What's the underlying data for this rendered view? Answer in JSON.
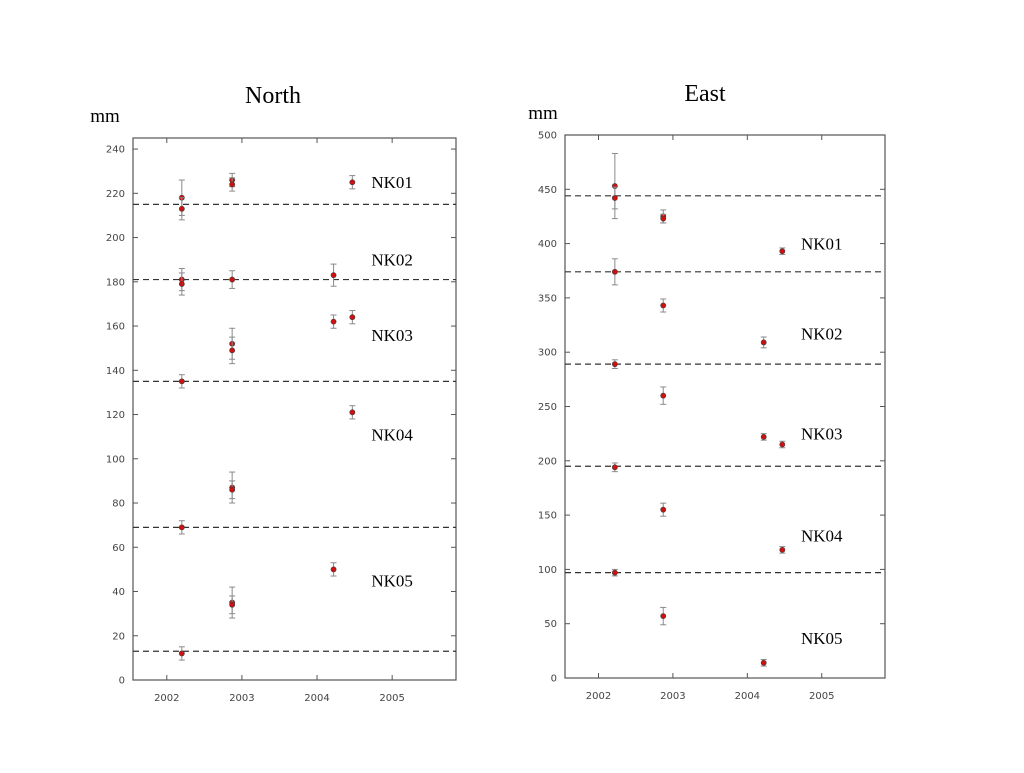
{
  "chart_data": [
    {
      "type": "scatter",
      "title": "North",
      "ylabel": "mm",
      "xlabel": "",
      "xlim": [
        2001.55,
        2005.85
      ],
      "ylim": [
        0,
        245
      ],
      "xticks": [
        2002,
        2003,
        2004,
        2005
      ],
      "yticks": [
        0,
        20,
        40,
        60,
        80,
        100,
        120,
        140,
        160,
        180,
        200,
        220,
        240
      ],
      "grid": false,
      "reference_lines": [
        215,
        181,
        135,
        69,
        13
      ],
      "station_labels": [
        {
          "text": "NK01",
          "x": 2005.0,
          "y": 225
        },
        {
          "text": "NK02",
          "x": 2005.0,
          "y": 190
        },
        {
          "text": "NK03",
          "x": 2005.0,
          "y": 156
        },
        {
          "text": "NK04",
          "x": 2005.0,
          "y": 111
        },
        {
          "text": "NK05",
          "x": 2005.0,
          "y": 45
        }
      ],
      "points": [
        {
          "x": 2002.2,
          "y": 218,
          "err": 8
        },
        {
          "x": 2002.2,
          "y": 213,
          "err": 5
        },
        {
          "x": 2002.87,
          "y": 226,
          "err": 3
        },
        {
          "x": 2002.87,
          "y": 224,
          "err": 3
        },
        {
          "x": 2004.47,
          "y": 225,
          "err": 3
        },
        {
          "x": 2002.2,
          "y": 181,
          "err": 5
        },
        {
          "x": 2002.2,
          "y": 179,
          "err": 5
        },
        {
          "x": 2002.87,
          "y": 181,
          "err": 4
        },
        {
          "x": 2004.22,
          "y": 183,
          "err": 5
        },
        {
          "x": 2002.87,
          "y": 152,
          "err": 7
        },
        {
          "x": 2002.87,
          "y": 149,
          "err": 6
        },
        {
          "x": 2004.22,
          "y": 162,
          "err": 3
        },
        {
          "x": 2004.47,
          "y": 164,
          "err": 3
        },
        {
          "x": 2002.2,
          "y": 135,
          "err": 3
        },
        {
          "x": 2004.47,
          "y": 121,
          "err": 3
        },
        {
          "x": 2002.87,
          "y": 87,
          "err": 7
        },
        {
          "x": 2002.87,
          "y": 86,
          "err": 4
        },
        {
          "x": 2002.2,
          "y": 69,
          "err": 3
        },
        {
          "x": 2002.87,
          "y": 35,
          "err": 7
        },
        {
          "x": 2002.87,
          "y": 34,
          "err": 4
        },
        {
          "x": 2004.22,
          "y": 50,
          "err": 3
        },
        {
          "x": 2002.2,
          "y": 12,
          "err": 3
        }
      ]
    },
    {
      "type": "scatter",
      "title": "East",
      "ylabel": "mm",
      "xlabel": "",
      "xlim": [
        2001.55,
        2005.85
      ],
      "ylim": [
        0,
        500
      ],
      "xticks": [
        2002,
        2003,
        2004,
        2005
      ],
      "yticks": [
        0,
        50,
        100,
        150,
        200,
        250,
        300,
        350,
        400,
        450,
        500
      ],
      "grid": false,
      "reference_lines": [
        444,
        374,
        289,
        195,
        97
      ],
      "station_labels": [
        {
          "text": "NK01",
          "x": 2005.0,
          "y": 400
        },
        {
          "text": "NK02",
          "x": 2005.0,
          "y": 317
        },
        {
          "text": "NK03",
          "x": 2005.0,
          "y": 225
        },
        {
          "text": "NK04",
          "x": 2005.0,
          "y": 131
        },
        {
          "text": "NK05",
          "x": 2005.0,
          "y": 37
        }
      ],
      "points": [
        {
          "x": 2002.22,
          "y": 453,
          "err": 30
        },
        {
          "x": 2002.22,
          "y": 442,
          "err": 10
        },
        {
          "x": 2002.87,
          "y": 425,
          "err": 6
        },
        {
          "x": 2002.87,
          "y": 423,
          "err": 4
        },
        {
          "x": 2004.47,
          "y": 393,
          "err": 3
        },
        {
          "x": 2002.22,
          "y": 374,
          "err": 12
        },
        {
          "x": 2002.87,
          "y": 343,
          "err": 6
        },
        {
          "x": 2004.22,
          "y": 309,
          "err": 5
        },
        {
          "x": 2002.22,
          "y": 289,
          "err": 4
        },
        {
          "x": 2002.87,
          "y": 260,
          "err": 8
        },
        {
          "x": 2004.22,
          "y": 222,
          "err": 3
        },
        {
          "x": 2004.47,
          "y": 215,
          "err": 3
        },
        {
          "x": 2002.22,
          "y": 194,
          "err": 4
        },
        {
          "x": 2002.87,
          "y": 155,
          "err": 6
        },
        {
          "x": 2004.47,
          "y": 118,
          "err": 3
        },
        {
          "x": 2002.22,
          "y": 97,
          "err": 3
        },
        {
          "x": 2002.87,
          "y": 57,
          "err": 8
        },
        {
          "x": 2004.22,
          "y": 14,
          "err": 3
        }
      ]
    }
  ],
  "colors": {
    "point": "#d01010",
    "point_outline": "#404040",
    "errorbar": "#8a8a8a",
    "reference_line": "#333333",
    "axis": "#555555"
  }
}
